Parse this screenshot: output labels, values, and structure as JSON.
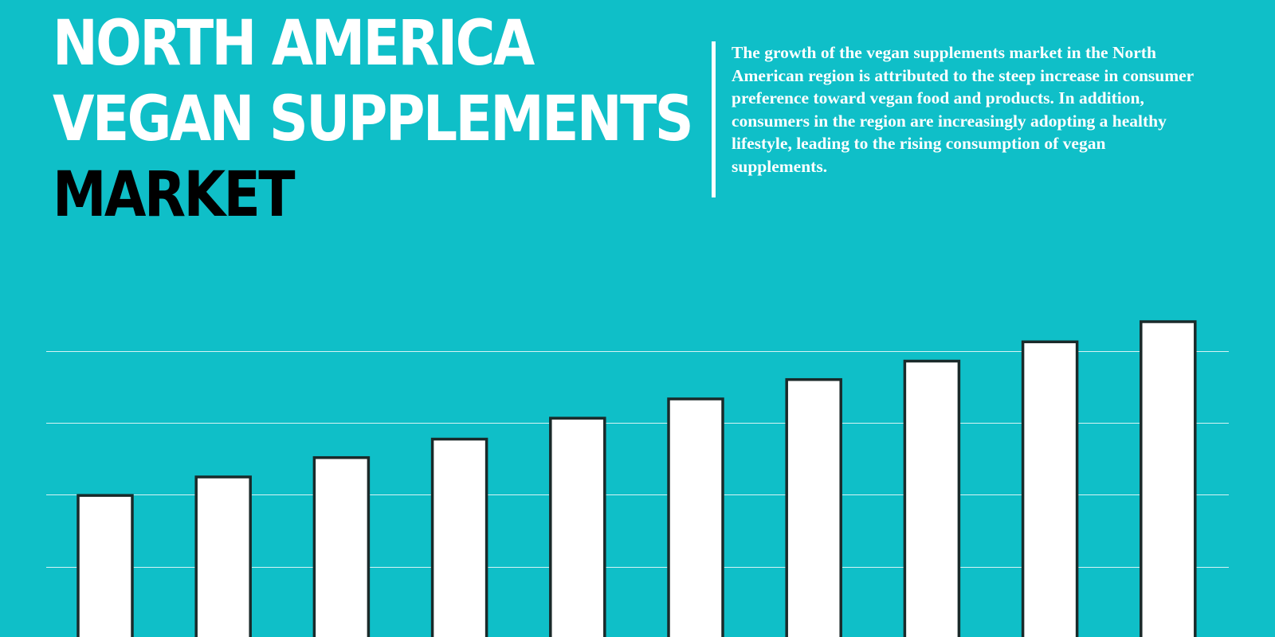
{
  "title": {
    "line1": "NORTH AMERICA",
    "line2": "VEGAN SUPPLEMENTS",
    "line3": "MARKET"
  },
  "description": "The growth of the vegan supplements market in the North American region is attributed to the steep increase in consumer preference toward vegan food and products. In addition, consumers in the region are increasingly adopting a healthy lifestyle, leading to the rising consumption of vegan supplements.",
  "colors": {
    "background": "#0fbfc8",
    "title_primary": "#ffffff",
    "title_accent": "#000000",
    "bar_fill": "#ffffff",
    "bar_stroke": "#1a2a2a",
    "gridline": "#d6f3f5"
  },
  "chart_data": {
    "type": "bar",
    "title": "",
    "xlabel": "",
    "ylabel": "",
    "categories": [
      "",
      "",
      "",
      "",
      "",
      "",
      "",
      "",
      "",
      ""
    ],
    "values": [
      179,
      202,
      226,
      249,
      275,
      299,
      323,
      346,
      370,
      395
    ],
    "ylim": [
      0,
      395
    ],
    "gridlines": [
      90,
      180,
      269,
      358
    ],
    "grid": true,
    "legend": "none"
  }
}
